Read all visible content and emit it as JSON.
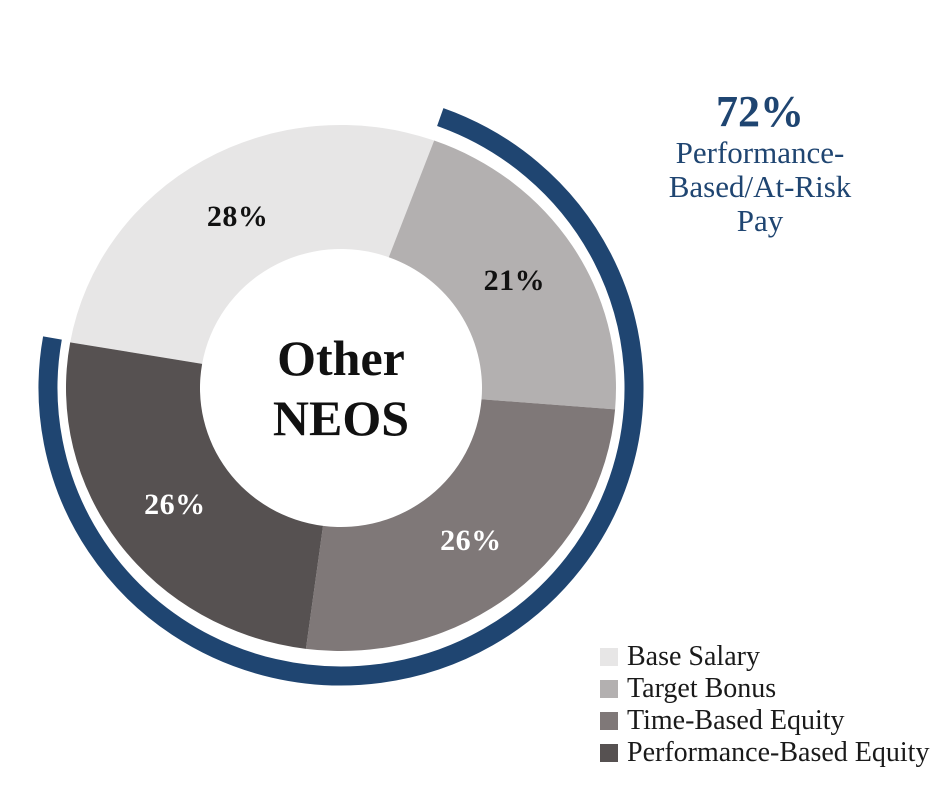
{
  "chart_data": {
    "type": "pie",
    "subtype": "donut",
    "center_label": "Other\nNEOS",
    "start_angle_deg": -80,
    "legend_position": "bottom-right",
    "annotation_position": "top-right",
    "series": [
      {
        "name": "Base Salary",
        "value": 28,
        "display_label": "28%",
        "color": "#e7e6e6",
        "label_color": "#111111"
      },
      {
        "name": "Target Bonus",
        "value": 21,
        "display_label": "21%",
        "color": "#b3b0b0",
        "label_color": "#111111"
      },
      {
        "name": "Time-Based Equity",
        "value": 26,
        "display_label": "26%",
        "color": "#7f7878",
        "label_color": "#ffffff"
      },
      {
        "name": "Performance-Based Equity",
        "value": 26,
        "display_label": "26%",
        "color": "#565151",
        "label_color": "#ffffff"
      }
    ],
    "annotation": {
      "value": "72%",
      "label": "Performance-\nBased/At-Risk\nPay",
      "color": "#1f4571",
      "covers_series": [
        "Target Bonus",
        "Time-Based Equity",
        "Performance-Based Equity"
      ]
    },
    "arc_color": "#1f4571"
  }
}
